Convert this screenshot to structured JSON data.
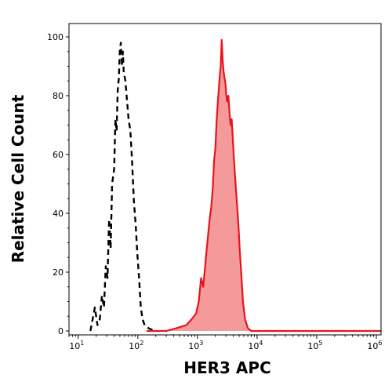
{
  "chart_data": {
    "type": "area",
    "title": "",
    "xlabel": "HER3 APC",
    "ylabel": "Relative Cell Count",
    "x_scale": "log",
    "xlim": [
      7,
      1200000
    ],
    "ylim": [
      0,
      100
    ],
    "x_ticks": [
      {
        "value": 10,
        "base": "10",
        "exp": "1"
      },
      {
        "value": 100,
        "base": "10",
        "exp": "2"
      },
      {
        "value": 1000,
        "base": "10",
        "exp": "3"
      },
      {
        "value": 10000,
        "base": "10",
        "exp": "4"
      },
      {
        "value": 100000,
        "base": "10",
        "exp": "5"
      },
      {
        "value": 1000000,
        "base": "10",
        "exp": "6"
      }
    ],
    "y_ticks": [
      "0",
      "20",
      "40",
      "60",
      "80",
      "100"
    ],
    "grid": false,
    "legend": "none",
    "series": [
      {
        "style": "dashed-outline",
        "color": "#000000",
        "points": [
          [
            16,
            0
          ],
          [
            19,
            8
          ],
          [
            21,
            2
          ],
          [
            23,
            4
          ],
          [
            25,
            12
          ],
          [
            27,
            8
          ],
          [
            29,
            22
          ],
          [
            31,
            18
          ],
          [
            33,
            38
          ],
          [
            35,
            28
          ],
          [
            37,
            50
          ],
          [
            40,
            55
          ],
          [
            42,
            72
          ],
          [
            44,
            68
          ],
          [
            46,
            82
          ],
          [
            48,
            86
          ],
          [
            50,
            96
          ],
          [
            52,
            98
          ],
          [
            54,
            90
          ],
          [
            56,
            95
          ],
          [
            58,
            88
          ],
          [
            62,
            85
          ],
          [
            66,
            78
          ],
          [
            70,
            72
          ],
          [
            75,
            68
          ],
          [
            80,
            58
          ],
          [
            86,
            44
          ],
          [
            92,
            36
          ],
          [
            98,
            26
          ],
          [
            105,
            18
          ],
          [
            112,
            8
          ],
          [
            120,
            4
          ],
          [
            130,
            2
          ],
          [
            150,
            1
          ],
          [
            190,
            0
          ]
        ]
      },
      {
        "style": "filled",
        "color": "#e8141c",
        "fill": "#f49a9a",
        "points": [
          [
            140,
            0
          ],
          [
            300,
            0
          ],
          [
            450,
            1
          ],
          [
            650,
            2
          ],
          [
            800,
            4
          ],
          [
            950,
            6
          ],
          [
            1050,
            10
          ],
          [
            1150,
            18
          ],
          [
            1250,
            15
          ],
          [
            1320,
            20
          ],
          [
            1400,
            26
          ],
          [
            1500,
            32
          ],
          [
            1600,
            38
          ],
          [
            1700,
            42
          ],
          [
            1800,
            48
          ],
          [
            1900,
            58
          ],
          [
            2000,
            62
          ],
          [
            2100,
            72
          ],
          [
            2200,
            78
          ],
          [
            2350,
            86
          ],
          [
            2450,
            90
          ],
          [
            2550,
            99
          ],
          [
            2650,
            92
          ],
          [
            2750,
            88
          ],
          [
            2850,
            86
          ],
          [
            2950,
            84
          ],
          [
            3050,
            80
          ],
          [
            3150,
            78
          ],
          [
            3300,
            80
          ],
          [
            3450,
            74
          ],
          [
            3600,
            70
          ],
          [
            3750,
            72
          ],
          [
            3900,
            66
          ],
          [
            4100,
            58
          ],
          [
            4300,
            52
          ],
          [
            4500,
            46
          ],
          [
            4800,
            38
          ],
          [
            5100,
            28
          ],
          [
            5400,
            20
          ],
          [
            5800,
            10
          ],
          [
            6300,
            4
          ],
          [
            7000,
            1
          ],
          [
            8000,
            0
          ],
          [
            10000,
            0
          ],
          [
            1200000,
            0
          ]
        ]
      }
    ]
  }
}
